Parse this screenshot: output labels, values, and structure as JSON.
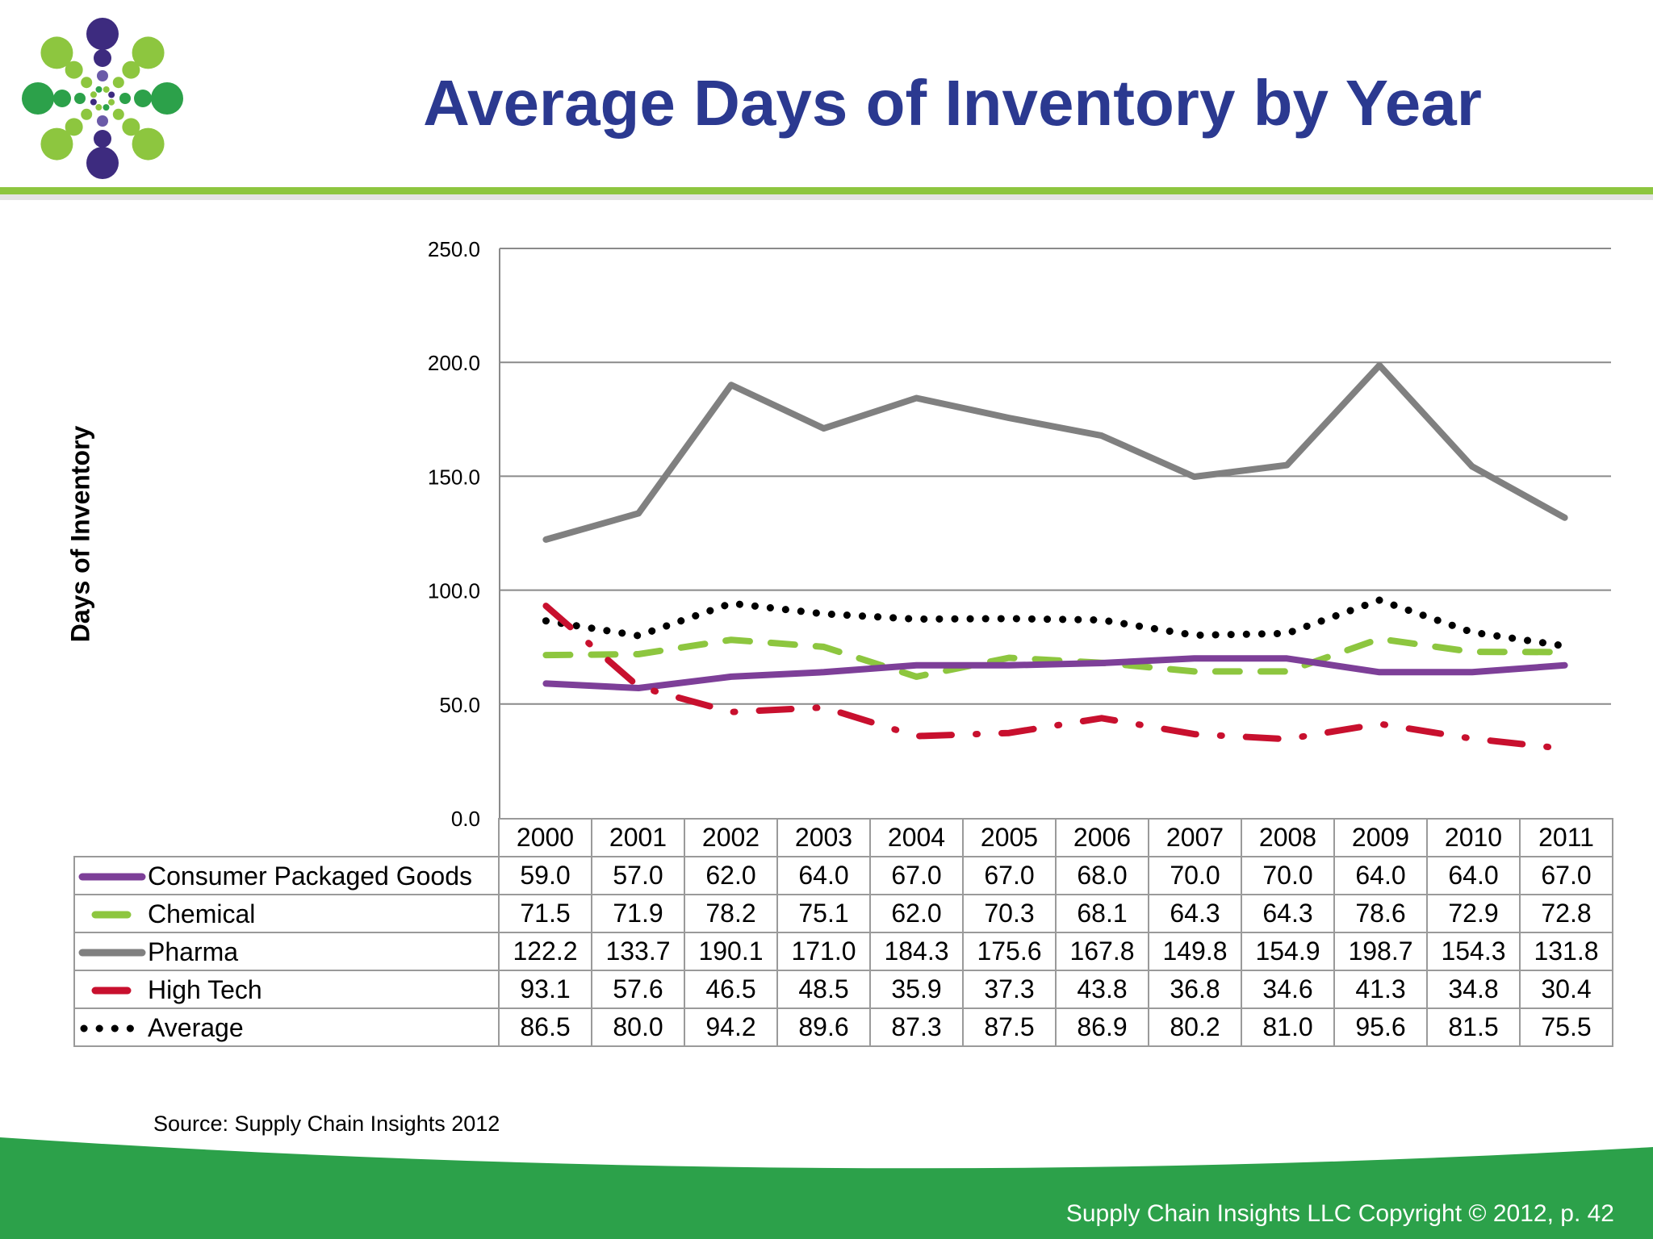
{
  "title": "Average Days of Inventory by Year",
  "source": "Source:  Supply Chain Insights 2012",
  "copyright": "Supply Chain Insights LLC Copyright © 2012, p. 42",
  "colors": {
    "title": "#2b3990",
    "accent_green": "#8dc63f",
    "footer_green": "#2ca14a",
    "gridline": "#8a8a8a"
  },
  "chart_data": {
    "type": "line",
    "ylabel": "Days of Inventory",
    "ylim": [
      0,
      250
    ],
    "yticks": [
      "0.0",
      "50.0",
      "100.0",
      "150.0",
      "200.0",
      "250.0"
    ],
    "grid": true,
    "x": [
      "2000",
      "2001",
      "2002",
      "2003",
      "2004",
      "2005",
      "2006",
      "2007",
      "2008",
      "2009",
      "2010",
      "2011"
    ],
    "series": [
      {
        "name": "Consumer Packaged Goods",
        "color": "#7d3f98",
        "style": "solid",
        "values": [
          59.0,
          57.0,
          62.0,
          64.0,
          67.0,
          67.0,
          68.0,
          70.0,
          70.0,
          64.0,
          64.0,
          67.0
        ],
        "labels": [
          "59.0",
          "57.0",
          "62.0",
          "64.0",
          "67.0",
          "67.0",
          "68.0",
          "70.0",
          "70.0",
          "64.0",
          "64.0",
          "67.0"
        ]
      },
      {
        "name": "Chemical",
        "color": "#8dc63f",
        "style": "dash",
        "values": [
          71.5,
          71.9,
          78.2,
          75.1,
          62.0,
          70.3,
          68.1,
          64.3,
          64.3,
          78.6,
          72.9,
          72.8
        ],
        "labels": [
          "71.5",
          "71.9",
          "78.2",
          "75.1",
          "62.0",
          "70.3",
          "68.1",
          "64.3",
          "64.3",
          "78.6",
          "72.9",
          "72.8"
        ]
      },
      {
        "name": "Pharma",
        "color": "#808080",
        "style": "solid",
        "values": [
          122.2,
          133.7,
          190.1,
          171.0,
          184.3,
          175.6,
          167.8,
          149.8,
          154.9,
          198.7,
          154.3,
          131.8
        ],
        "labels": [
          "122.2",
          "133.7",
          "190.1",
          "171.0",
          "184.3",
          "175.6",
          "167.8",
          "149.8",
          "154.9",
          "198.7",
          "154.3",
          "131.8"
        ]
      },
      {
        "name": "High Tech",
        "color": "#c8102e",
        "style": "dashdot",
        "values": [
          93.1,
          57.6,
          46.5,
          48.5,
          35.9,
          37.3,
          43.8,
          36.8,
          34.6,
          41.3,
          34.8,
          30.4
        ],
        "labels": [
          "93.1",
          "57.6",
          "46.5",
          "48.5",
          "35.9",
          "37.3",
          "43.8",
          "36.8",
          "34.6",
          "41.3",
          "34.8",
          "30.4"
        ]
      },
      {
        "name": "Average",
        "color": "#000000",
        "style": "dot",
        "values": [
          86.5,
          80.0,
          94.2,
          89.6,
          87.3,
          87.5,
          86.9,
          80.2,
          81.0,
          95.6,
          81.5,
          75.5
        ],
        "labels": [
          "86.5",
          "80.0",
          "94.2",
          "89.6",
          "87.3",
          "87.5",
          "86.9",
          "80.2",
          "81.0",
          "95.6",
          "81.5",
          "75.5"
        ]
      }
    ]
  }
}
